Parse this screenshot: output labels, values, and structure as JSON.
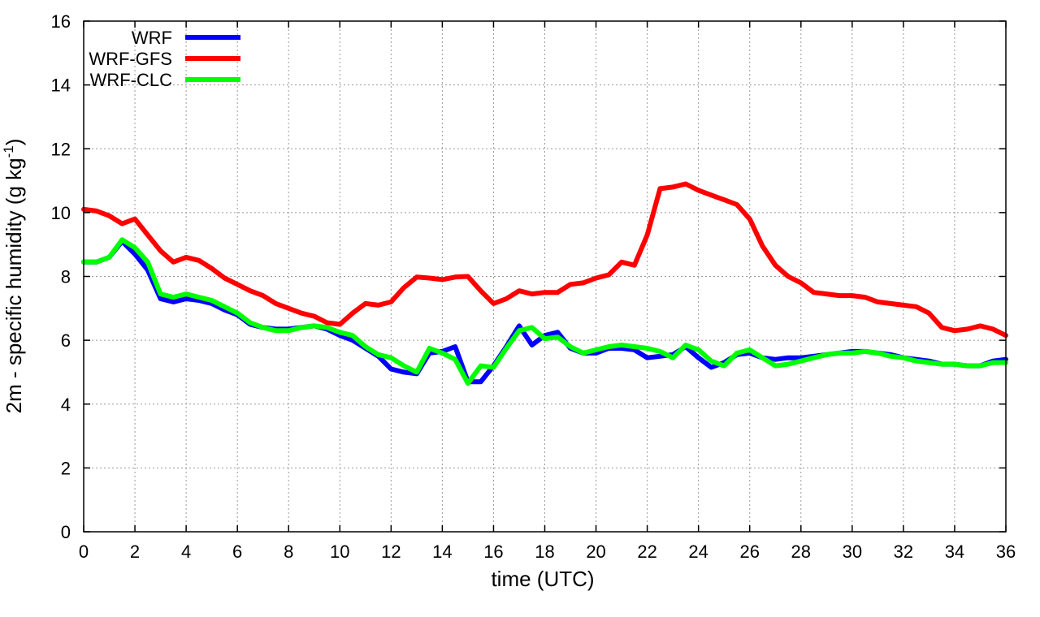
{
  "chart_data": {
    "type": "line",
    "title": "",
    "xlabel": "time (UTC)",
    "ylabel": "2m - specific humidity (g kg",
    "ylabel_sup": "-1",
    "ylabel_close": ")",
    "xlim": [
      0,
      36
    ],
    "ylim": [
      0,
      16
    ],
    "xticks": [
      0,
      2,
      4,
      6,
      8,
      10,
      12,
      14,
      16,
      18,
      20,
      22,
      24,
      26,
      28,
      30,
      32,
      34,
      36
    ],
    "yticks": [
      0,
      2,
      4,
      6,
      8,
      10,
      12,
      14,
      16
    ],
    "grid": true,
    "legend_position": "top-left",
    "series": [
      {
        "name": "WRF",
        "color": "#0000ff",
        "x": [
          0,
          0.5,
          1,
          1.5,
          2,
          2.5,
          3,
          3.5,
          4,
          4.5,
          5,
          5.5,
          6,
          6.5,
          7,
          7.5,
          8,
          8.5,
          9,
          9.5,
          10,
          10.5,
          11,
          11.5,
          12,
          12.5,
          13,
          13.5,
          14,
          14.5,
          15,
          15.5,
          16,
          16.5,
          17,
          17.5,
          18,
          18.5,
          19,
          19.5,
          20,
          20.5,
          21,
          21.5,
          22,
          22.5,
          23,
          23.5,
          24,
          24.5,
          25,
          25.5,
          26,
          26.5,
          27,
          27.5,
          28,
          28.5,
          29,
          29.5,
          30,
          30.5,
          31,
          31.5,
          32,
          32.5,
          33,
          33.5,
          34,
          34.5,
          35,
          35.5,
          36
        ],
        "values": [
          8.45,
          8.45,
          8.6,
          9.1,
          8.7,
          8.2,
          7.3,
          7.2,
          7.3,
          7.25,
          7.15,
          6.95,
          6.8,
          6.5,
          6.4,
          6.35,
          6.35,
          6.4,
          6.45,
          6.35,
          6.15,
          6.0,
          5.75,
          5.5,
          5.1,
          5.0,
          4.95,
          5.6,
          5.65,
          5.8,
          4.7,
          4.7,
          5.2,
          5.8,
          6.45,
          5.85,
          6.15,
          6.25,
          5.75,
          5.6,
          5.6,
          5.75,
          5.75,
          5.7,
          5.45,
          5.5,
          5.55,
          5.8,
          5.45,
          5.15,
          5.3,
          5.55,
          5.6,
          5.45,
          5.4,
          5.45,
          5.45,
          5.5,
          5.55,
          5.6,
          5.65,
          5.65,
          5.6,
          5.55,
          5.45,
          5.4,
          5.35,
          5.25,
          5.25,
          5.2,
          5.2,
          5.35,
          5.4
        ]
      },
      {
        "name": "WRF-GFS",
        "color": "#ff0000",
        "x": [
          0,
          0.5,
          1,
          1.5,
          2,
          2.5,
          3,
          3.5,
          4,
          4.5,
          5,
          5.5,
          6,
          6.5,
          7,
          7.5,
          8,
          8.5,
          9,
          9.5,
          10,
          10.5,
          11,
          11.5,
          12,
          12.5,
          13,
          13.5,
          14,
          14.5,
          15,
          15.5,
          16,
          16.5,
          17,
          17.5,
          18,
          18.5,
          19,
          19.5,
          20,
          20.5,
          21,
          21.5,
          22,
          22.5,
          23,
          23.5,
          24,
          24.5,
          25,
          25.5,
          26,
          26.5,
          27,
          27.5,
          28,
          28.5,
          29,
          29.5,
          30,
          30.5,
          31,
          31.5,
          32,
          32.5,
          33,
          33.5,
          34,
          34.5,
          35,
          35.5,
          36
        ],
        "values": [
          10.1,
          10.05,
          9.9,
          9.65,
          9.8,
          9.3,
          8.8,
          8.45,
          8.6,
          8.5,
          8.25,
          7.95,
          7.75,
          7.55,
          7.4,
          7.15,
          7.0,
          6.85,
          6.75,
          6.55,
          6.5,
          6.85,
          7.15,
          7.1,
          7.2,
          7.65,
          7.98,
          7.95,
          7.9,
          7.98,
          8.0,
          7.55,
          7.15,
          7.3,
          7.55,
          7.45,
          7.5,
          7.5,
          7.75,
          7.8,
          7.95,
          8.05,
          8.45,
          8.35,
          9.3,
          10.75,
          10.8,
          10.9,
          10.7,
          10.55,
          10.4,
          10.25,
          9.8,
          8.95,
          8.35,
          8.0,
          7.8,
          7.5,
          7.45,
          7.4,
          7.4,
          7.35,
          7.2,
          7.15,
          7.1,
          7.05,
          6.85,
          6.4,
          6.3,
          6.35,
          6.45,
          6.35,
          6.15
        ]
      },
      {
        "name": "WRF-CLC",
        "color": "#00ff00",
        "x": [
          0,
          0.5,
          1,
          1.5,
          2,
          2.5,
          3,
          3.5,
          4,
          4.5,
          5,
          5.5,
          6,
          6.5,
          7,
          7.5,
          8,
          8.5,
          9,
          9.5,
          10,
          10.5,
          11,
          11.5,
          12,
          12.5,
          13,
          13.5,
          14,
          14.5,
          15,
          15.5,
          16,
          16.5,
          17,
          17.5,
          18,
          18.5,
          19,
          19.5,
          20,
          20.5,
          21,
          21.5,
          22,
          22.5,
          23,
          23.5,
          24,
          24.5,
          25,
          25.5,
          26,
          26.5,
          27,
          27.5,
          28,
          28.5,
          29,
          29.5,
          30,
          30.5,
          31,
          31.5,
          32,
          32.5,
          33,
          33.5,
          34,
          34.5,
          35,
          35.5,
          36
        ],
        "values": [
          8.45,
          8.45,
          8.6,
          9.15,
          8.9,
          8.45,
          7.45,
          7.35,
          7.45,
          7.35,
          7.25,
          7.05,
          6.85,
          6.55,
          6.4,
          6.3,
          6.3,
          6.4,
          6.45,
          6.4,
          6.25,
          6.15,
          5.8,
          5.55,
          5.45,
          5.2,
          5.0,
          5.75,
          5.6,
          5.4,
          4.65,
          5.2,
          5.15,
          5.75,
          6.3,
          6.4,
          6.05,
          6.1,
          5.8,
          5.6,
          5.7,
          5.8,
          5.85,
          5.8,
          5.75,
          5.65,
          5.45,
          5.85,
          5.7,
          5.35,
          5.2,
          5.6,
          5.7,
          5.45,
          5.2,
          5.25,
          5.35,
          5.45,
          5.55,
          5.6,
          5.6,
          5.65,
          5.6,
          5.5,
          5.45,
          5.35,
          5.3,
          5.25,
          5.25,
          5.2,
          5.2,
          5.3,
          5.3
        ]
      }
    ]
  }
}
